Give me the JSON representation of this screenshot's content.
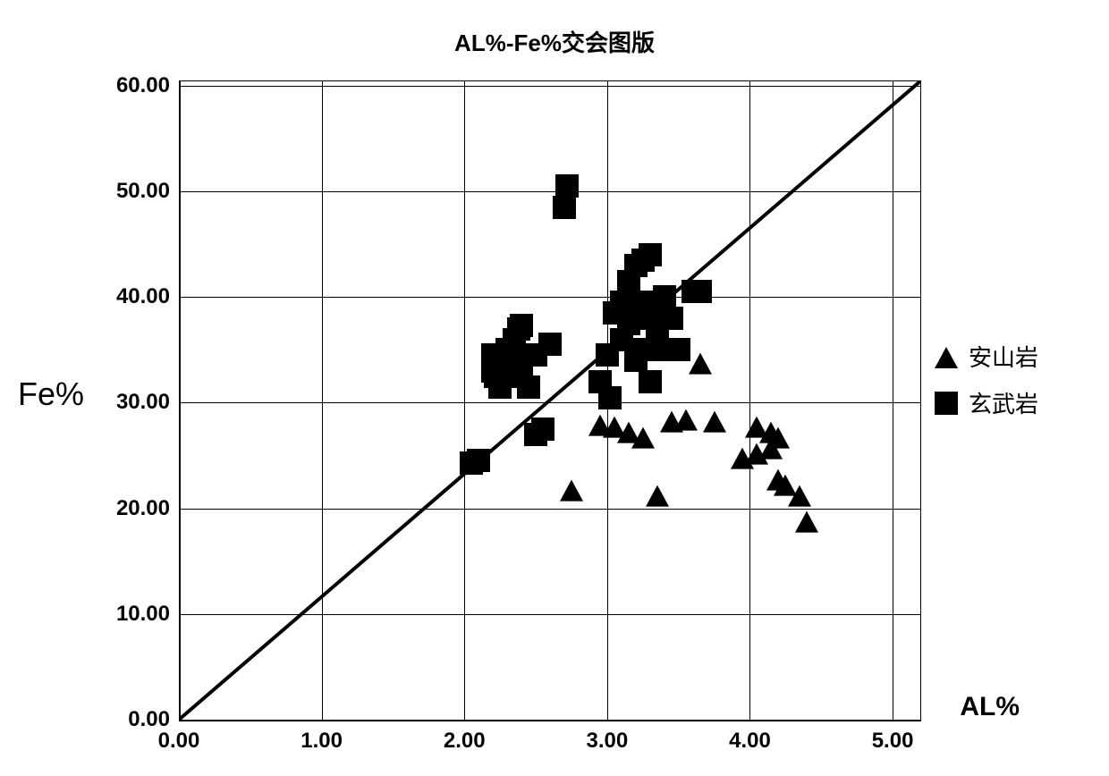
{
  "chart": {
    "type": "scatter",
    "title": "AL%-Fe%交会图版",
    "title_fontsize": 26,
    "title_fontweight": "bold",
    "xlabel": "AL%",
    "ylabel": "Fe%",
    "label_fontsize": 30,
    "xlim": [
      0,
      5.2
    ],
    "ylim": [
      0,
      60.5
    ],
    "xticks": [
      0.0,
      1.0,
      2.0,
      3.0,
      4.0,
      5.0
    ],
    "yticks": [
      0.0,
      10.0,
      20.0,
      30.0,
      40.0,
      50.0,
      60.0
    ],
    "xtick_labels": [
      "0.00",
      "1.00",
      "2.00",
      "3.00",
      "4.00",
      "5.00"
    ],
    "ytick_labels": [
      "0.00",
      "10.00",
      "20.00",
      "30.00",
      "40.00",
      "50.00",
      "60.00"
    ],
    "tick_fontsize": 24,
    "tick_fontweight": "bold",
    "background_color": "#ffffff",
    "grid_color": "#000000",
    "grid_on": true,
    "marker_size": 26,
    "line": {
      "points": [
        [
          0,
          0
        ],
        [
          5.2,
          60.5
        ]
      ],
      "color": "#000000",
      "width": 4
    },
    "series": [
      {
        "name": "安山岩",
        "marker_style": "triangle",
        "marker_color": "#000000",
        "data": [
          [
            2.75,
            21.5
          ],
          [
            2.95,
            27.7
          ],
          [
            3.05,
            27.5
          ],
          [
            3.15,
            27.0
          ],
          [
            3.25,
            26.5
          ],
          [
            3.35,
            21.0
          ],
          [
            3.45,
            28.0
          ],
          [
            3.55,
            28.2
          ],
          [
            3.65,
            33.5
          ],
          [
            3.75,
            28.0
          ],
          [
            3.95,
            24.5
          ],
          [
            4.05,
            27.5
          ],
          [
            4.05,
            25.0
          ],
          [
            4.15,
            27.0
          ],
          [
            4.15,
            25.5
          ],
          [
            4.2,
            22.5
          ],
          [
            4.2,
            26.5
          ],
          [
            4.25,
            22.0
          ],
          [
            4.35,
            21.0
          ],
          [
            4.4,
            18.5
          ]
        ]
      },
      {
        "name": "玄武岩",
        "marker_style": "square",
        "marker_color": "#000000",
        "data": [
          [
            2.05,
            24.3
          ],
          [
            2.1,
            24.5
          ],
          [
            2.2,
            33.0
          ],
          [
            2.2,
            34.5
          ],
          [
            2.22,
            32.5
          ],
          [
            2.25,
            31.5
          ],
          [
            2.25,
            34.0
          ],
          [
            2.28,
            33.5
          ],
          [
            2.3,
            32.5
          ],
          [
            2.3,
            35.0
          ],
          [
            2.32,
            33.0
          ],
          [
            2.35,
            34.0
          ],
          [
            2.35,
            36.0
          ],
          [
            2.38,
            32.5
          ],
          [
            2.38,
            37.0
          ],
          [
            2.4,
            33.5
          ],
          [
            2.4,
            37.3
          ],
          [
            2.45,
            34.5
          ],
          [
            2.45,
            31.5
          ],
          [
            2.5,
            34.5
          ],
          [
            2.5,
            27.0
          ],
          [
            2.55,
            27.5
          ],
          [
            2.6,
            35.5
          ],
          [
            2.7,
            48.5
          ],
          [
            2.72,
            50.5
          ],
          [
            2.95,
            32.0
          ],
          [
            3.0,
            34.5
          ],
          [
            3.02,
            30.5
          ],
          [
            3.05,
            38.5
          ],
          [
            3.1,
            39.5
          ],
          [
            3.1,
            36.0
          ],
          [
            3.15,
            41.5
          ],
          [
            3.15,
            37.5
          ],
          [
            3.2,
            43.0
          ],
          [
            3.2,
            34.0
          ],
          [
            3.25,
            43.5
          ],
          [
            3.25,
            39.5
          ],
          [
            3.25,
            35.0
          ],
          [
            3.3,
            44.0
          ],
          [
            3.3,
            38.0
          ],
          [
            3.3,
            32.0
          ],
          [
            3.35,
            39.5
          ],
          [
            3.35,
            37.0
          ],
          [
            3.4,
            40.0
          ],
          [
            3.4,
            35.0
          ],
          [
            3.45,
            38.0
          ],
          [
            3.5,
            35.0
          ],
          [
            3.6,
            40.5
          ],
          [
            3.65,
            40.5
          ]
        ]
      }
    ],
    "legend": {
      "position": "right",
      "items": [
        {
          "marker": "triangle",
          "label": "安山岩"
        },
        {
          "marker": "square",
          "label": "玄武岩"
        }
      ]
    }
  }
}
